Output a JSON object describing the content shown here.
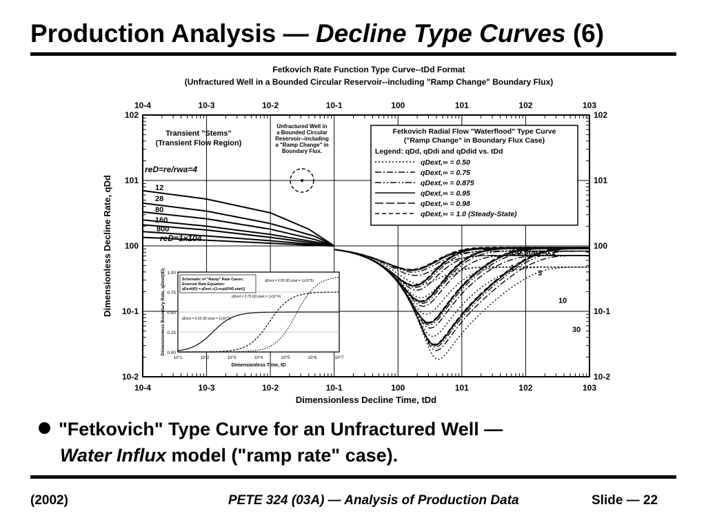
{
  "slide": {
    "title_main": "Production Analysis",
    "title_dash": " — ",
    "title_italic": "Decline Type Curves",
    "title_num": " (6)",
    "bullet_line1": "\"Fetkovich\" Type Curve for an Unfractured Well —",
    "bullet_italic": "Water Influx",
    "bullet_rest": " model (\"ramp rate\" case).",
    "footer_left": "(2002)",
    "footer_center": "PETE 324 (03A) — Analysis of Production Data",
    "footer_right": "Slide — 22"
  },
  "chart_data": {
    "type": "line",
    "title": "Fetkovich Rate Function Type Curve--tDd Format",
    "subtitle": "(Unfractured Well in a Bounded Circular Reservoir--including \"Ramp Change\" Boundary Flux)",
    "xlabel": "Dimensionless Decline Time, tDd",
    "ylabel": "Dimensionless Decline Rate, qDd",
    "x_scale": "log",
    "y_scale": "log",
    "xlim": [
      0.0001,
      1000
    ],
    "ylim": [
      0.01,
      100
    ],
    "x_ticks": [
      "10-4",
      "10-3",
      "10-2",
      "10-1",
      "100",
      "101",
      "102",
      "103"
    ],
    "y_ticks": [
      "10-2",
      "10-1",
      "100",
      "101",
      "102"
    ],
    "grid": true,
    "annotations": {
      "transient_1": "Transient \"Stems\"",
      "transient_2": "(Transient Flow Region)",
      "well_note": [
        "Unfractured Well in",
        "a Bounded Circular",
        "Reservoir--including",
        "a \"Ramp Change\" in",
        "Boundary Flux."
      ],
      "reD_label": "reD=re/rwa=4",
      "reD_last": "reD=1x104",
      "stem_labels": [
        "12",
        "28",
        "80",
        "160",
        "800"
      ],
      "tstart_label": "tDd,Start=0.1",
      "tstart_values": [
        "1",
        "3",
        "10",
        "30"
      ]
    },
    "legend": {
      "position": "top-right",
      "title_1": "Fetkovich Radial Flow \"Waterflood\" Type Curve",
      "title_2": "(\"Ramp Change\" in Boundary Flux Case)",
      "title_3": "Legend: qDd, qDdi and qDdid vs. tDd",
      "entries": [
        {
          "label": "qDext,∞ = 0.50",
          "style": "dot"
        },
        {
          "label": "qDext,∞ = 0.75",
          "style": "dashdot"
        },
        {
          "label": "qDext,∞ = 0.875",
          "style": "dashdotdot"
        },
        {
          "label": "qDext,∞ = 0.95",
          "style": "solid"
        },
        {
          "label": "qDext,∞ = 0.98",
          "style": "longdash"
        },
        {
          "label": "qDext,∞ = 1.0 (Steady-State)",
          "style": "dash"
        }
      ]
    },
    "stems": [
      {
        "name": "reD=4",
        "points": [
          [
            0.0001,
            7
          ],
          [
            0.001,
            5.2
          ],
          [
            0.01,
            3.2
          ],
          [
            0.04,
            1.8
          ],
          [
            0.1,
            1.0
          ]
        ]
      },
      {
        "name": "12",
        "points": [
          [
            0.0001,
            4.5
          ],
          [
            0.001,
            3.4
          ],
          [
            0.01,
            2.2
          ],
          [
            0.05,
            1.4
          ],
          [
            0.1,
            1.0
          ]
        ]
      },
      {
        "name": "28",
        "points": [
          [
            0.0001,
            3.3
          ],
          [
            0.001,
            2.6
          ],
          [
            0.01,
            1.8
          ],
          [
            0.05,
            1.25
          ],
          [
            0.1,
            1.0
          ]
        ]
      },
      {
        "name": "80",
        "points": [
          [
            0.0001,
            2.5
          ],
          [
            0.001,
            2.0
          ],
          [
            0.01,
            1.5
          ],
          [
            0.05,
            1.15
          ],
          [
            0.1,
            1.0
          ]
        ]
      },
      {
        "name": "160",
        "points": [
          [
            0.0001,
            2.1
          ],
          [
            0.001,
            1.75
          ],
          [
            0.01,
            1.35
          ],
          [
            0.05,
            1.1
          ],
          [
            0.1,
            1.0
          ]
        ]
      },
      {
        "name": "800",
        "points": [
          [
            0.0001,
            1.65
          ],
          [
            0.001,
            1.42
          ],
          [
            0.01,
            1.2
          ],
          [
            0.05,
            1.05
          ],
          [
            0.1,
            1.0
          ]
        ]
      },
      {
        "name": "reD=1x104",
        "points": [
          [
            0.0001,
            1.35
          ],
          [
            0.001,
            1.22
          ],
          [
            0.01,
            1.1
          ],
          [
            0.05,
            1.02
          ],
          [
            0.1,
            1.0
          ]
        ]
      }
    ],
    "inset": {
      "title": "Schematic of \"Ramp\" Rate Cases:",
      "subtitle": "External Rate Equation:",
      "equation": "qDext(tD) = qDext,∞[1-exp(tD/tD,start)]",
      "xlabel": "Dimensionless Time, tD",
      "ylabel": "Dimensionless Boundary Rate, qDext(tD)",
      "x_ticks": [
        "10^1",
        "10^2",
        "10^3",
        "10^4",
        "10^5",
        "10^6",
        "10^7"
      ],
      "y_ticks": [
        "0.00",
        "0.25",
        "0.50",
        "0.75",
        "1.00"
      ],
      "labels": [
        "qDext = 0.50 (tD,start = 1x10^2)",
        "qDext = 0.75 (tD,start = 1x10^4)",
        "qDext = 0.95 (tD,start = 1x10^5)"
      ],
      "series": [
        {
          "name": "qDext = 0.50",
          "plateau": 0.5,
          "x_half_log": 2.3
        },
        {
          "name": "qDext = 0.75",
          "plateau": 0.75,
          "x_half_log": 4.4
        },
        {
          "name": "qDext = 0.95",
          "plateau": 0.95,
          "x_half_log": 5.4
        }
      ]
    }
  }
}
